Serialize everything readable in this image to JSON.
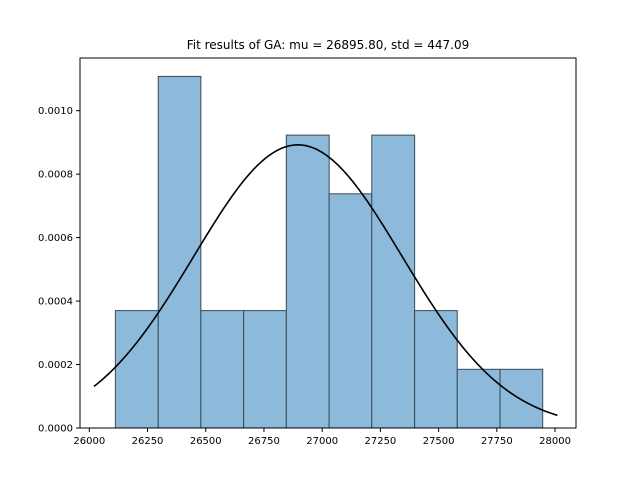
{
  "chart_data": {
    "type": "bar",
    "title": "Fit results of GA: mu = 26895.80,  std = 447.09",
    "xlabel": "",
    "ylabel": "",
    "xlim": [
      25960,
      28090
    ],
    "ylim": [
      0,
      0.001166
    ],
    "grid": false,
    "legend": "none",
    "x_ticks": [
      {
        "value": 26000,
        "label": "26000"
      },
      {
        "value": 26250,
        "label": "26250"
      },
      {
        "value": 26500,
        "label": "26500"
      },
      {
        "value": 26750,
        "label": "26750"
      },
      {
        "value": 27000,
        "label": "27000"
      },
      {
        "value": 27250,
        "label": "27250"
      },
      {
        "value": 27500,
        "label": "27500"
      },
      {
        "value": 27750,
        "label": "27750"
      },
      {
        "value": 28000,
        "label": "28000"
      }
    ],
    "y_ticks": [
      {
        "value": 0,
        "label": "0.0000"
      },
      {
        "value": 0.0002,
        "label": "0.0002"
      },
      {
        "value": 0.0004,
        "label": "0.0004"
      },
      {
        "value": 0.0006,
        "label": "0.0006"
      },
      {
        "value": 0.0008,
        "label": "0.0008"
      },
      {
        "value": 0.001,
        "label": "0.0010"
      }
    ],
    "histogram": {
      "bin_edges": [
        26112,
        26296,
        26479,
        26663,
        26846,
        27030,
        27213,
        27397,
        27580,
        27764,
        27947
      ],
      "density": [
        0.00037,
        0.001108,
        0.00037,
        0.00037,
        0.000923,
        0.000738,
        0.000923,
        0.00037,
        0.000185,
        0.000185
      ],
      "fill_color": "#8db9da",
      "edge_color": "#3a4a56"
    },
    "fit_curve": {
      "distribution": "normal",
      "mu": 26895.8,
      "std": 447.09,
      "x_range": [
        26020,
        28010
      ],
      "color": "#000000"
    }
  }
}
